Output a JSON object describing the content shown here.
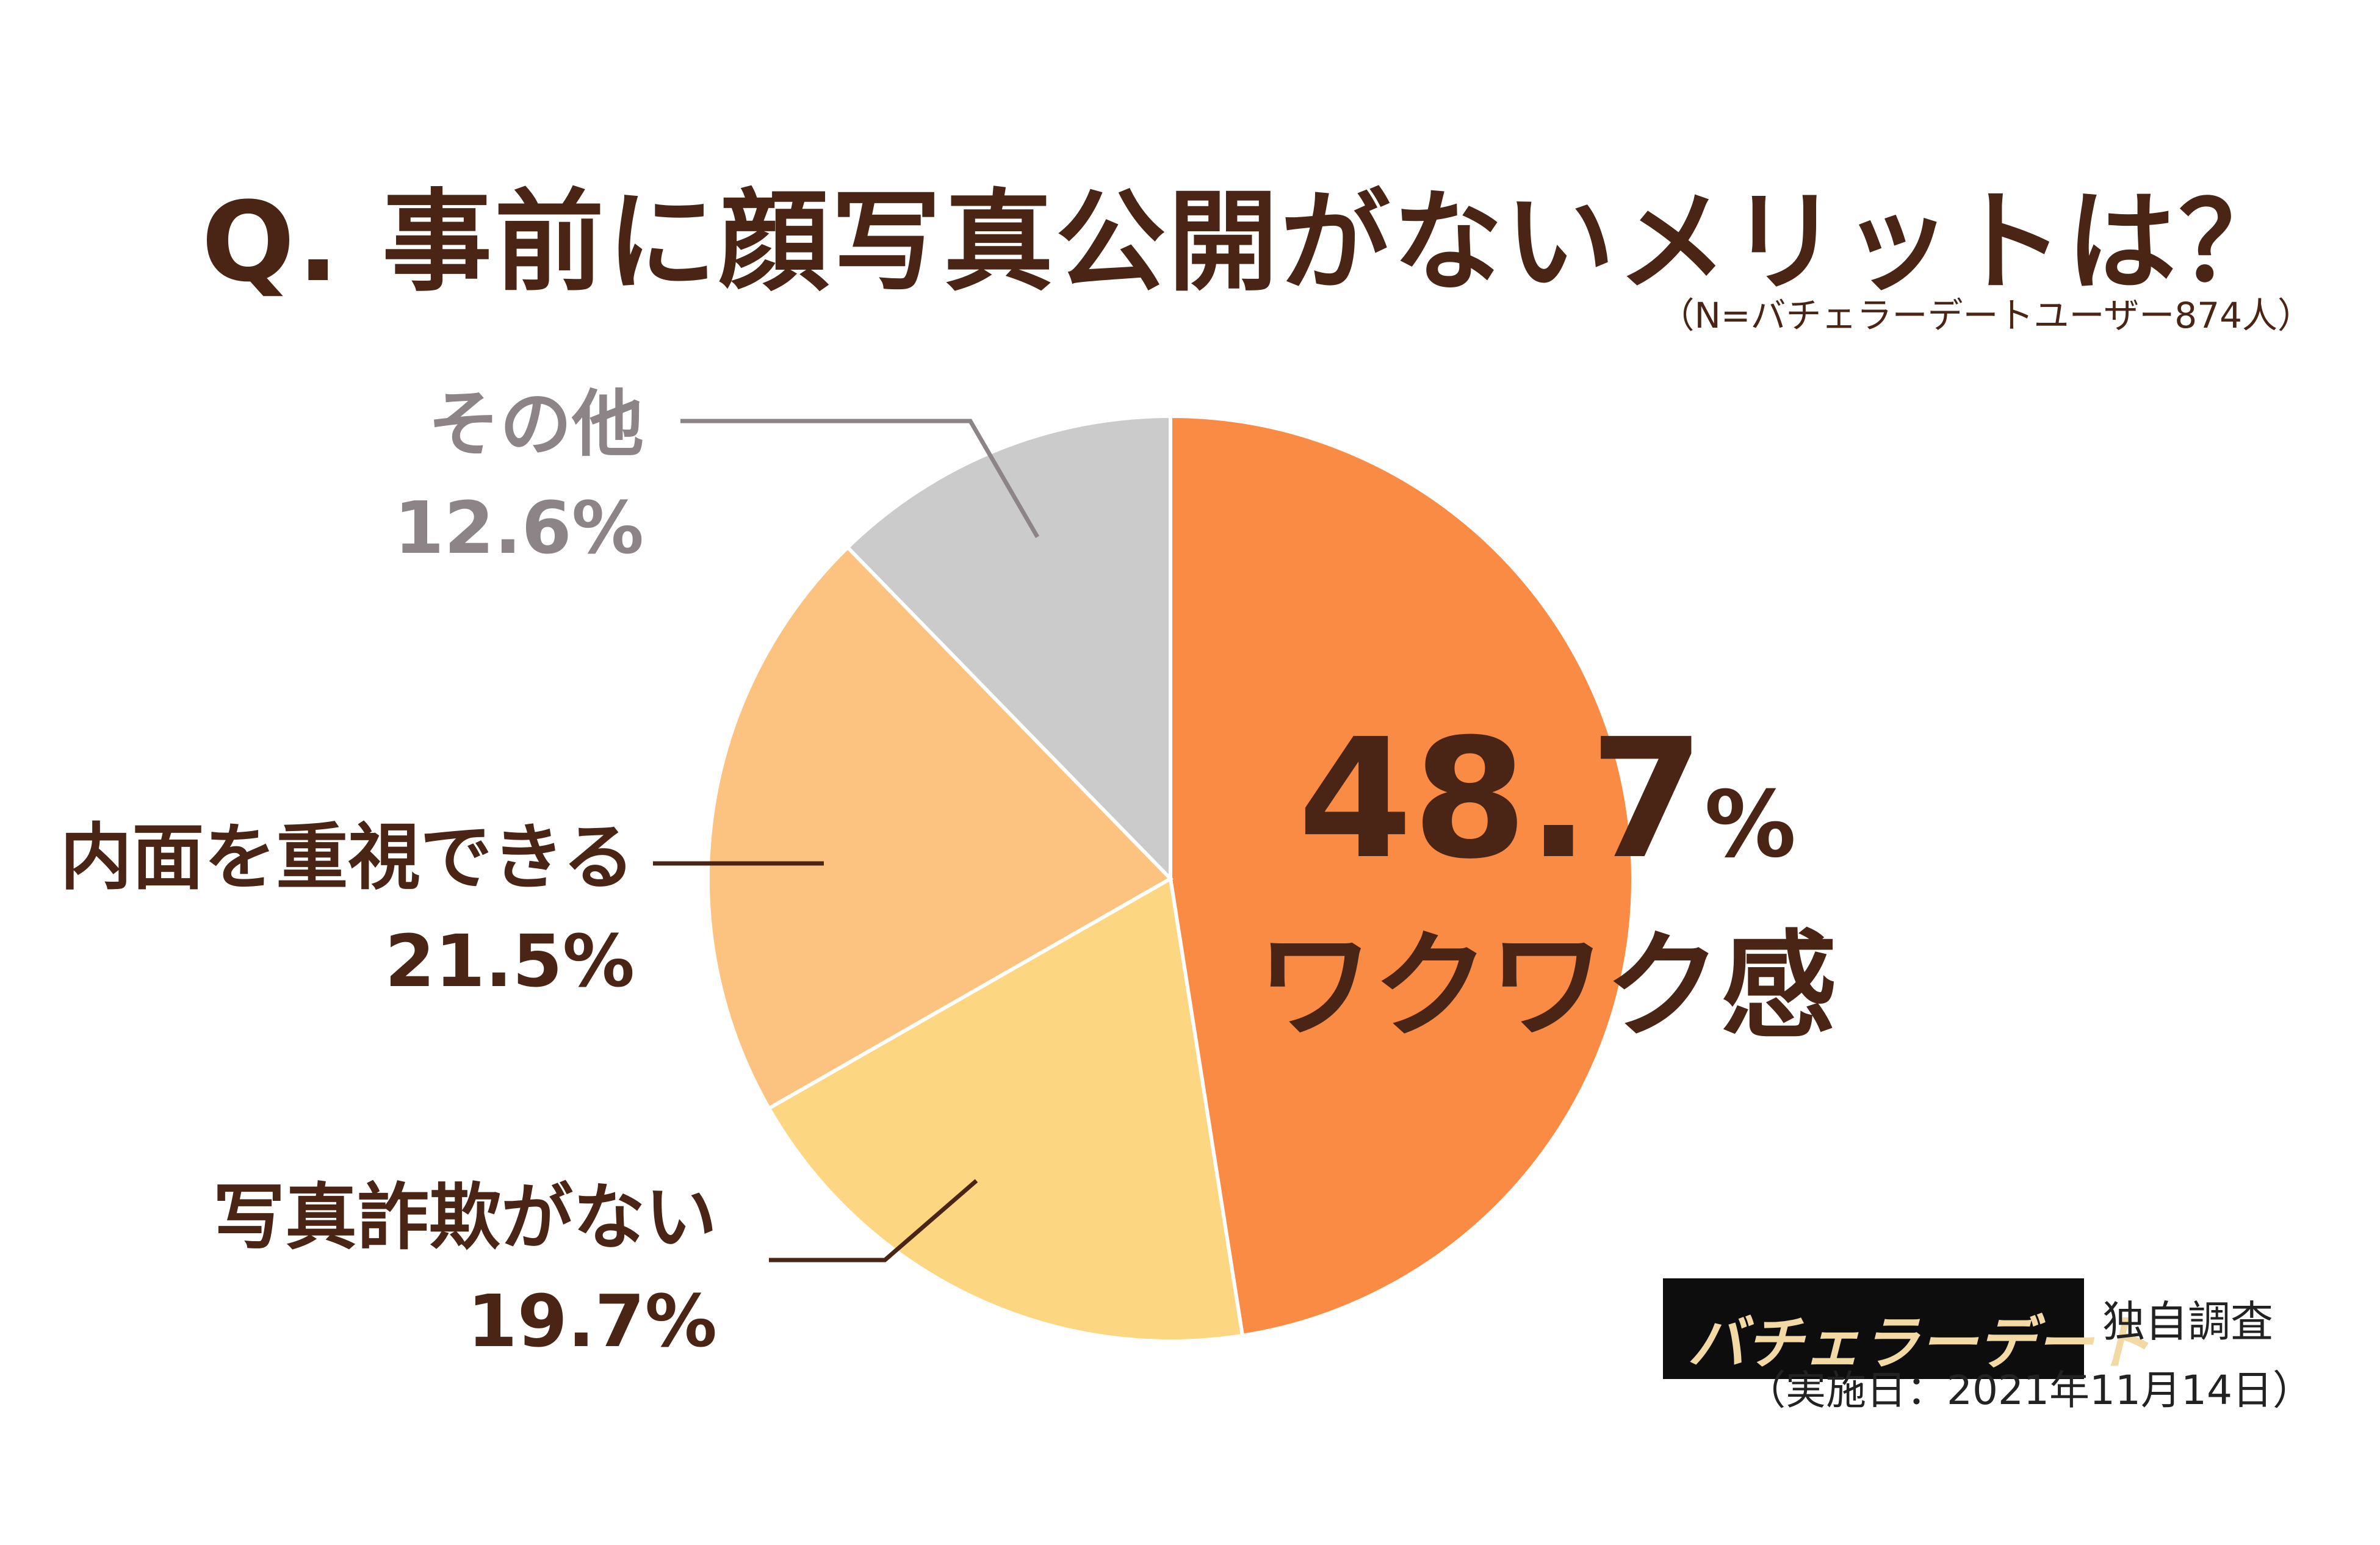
{
  "title": "Q. 事前に顔写真公開がないメリットは？",
  "sample_note": "（N=バチェラーデートユーザー874人）",
  "chart_data": {
    "type": "pie",
    "title": "Q. 事前に顔写真公開がないメリットは？",
    "slices": [
      {
        "label": "ワクワク感",
        "value": 48.7,
        "display": "48.7%",
        "color": "#f98b45"
      },
      {
        "label": "写真詐欺がない",
        "value": 19.7,
        "display": "19.7%",
        "color": "#fdd681"
      },
      {
        "label": "内面を重視できる",
        "value": 21.5,
        "display": "21.5%",
        "color": "#fcc27f"
      },
      {
        "label": "その他",
        "value": 12.6,
        "display": "12.6%",
        "color": "#cbcbcb"
      }
    ],
    "start": "12 o'clock",
    "direction": "clockwise",
    "label_colors": {
      "default": "#4a2414",
      "other": "#8c8486"
    }
  },
  "labels": {
    "main_value": "48.7",
    "main_unit": "%",
    "main_name": "ワクワク感",
    "photo_name": "写真詐欺がない",
    "photo_value": "19.7%",
    "inner_name": "内面を重視できる",
    "inner_value": "21.5%",
    "other_name": "その他",
    "other_value": "12.6%"
  },
  "footer": {
    "brand": "バチェラーデート",
    "survey": "独自調査",
    "date": "（実施日：2021年11月14日）"
  }
}
